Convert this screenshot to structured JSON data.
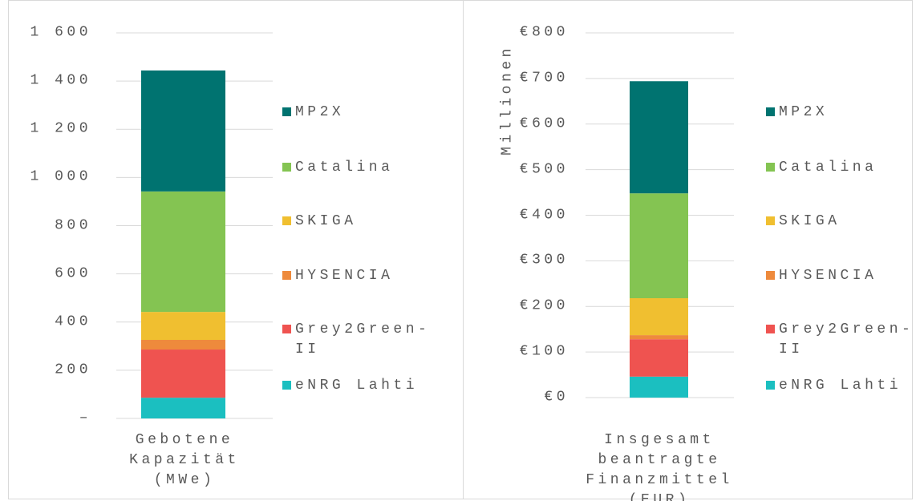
{
  "chart_data": [
    {
      "type": "bar",
      "stacked": true,
      "categories": [
        "Gebotene Kapazität (MWe)"
      ],
      "ylim": [
        0,
        1600
      ],
      "yticks": [
        {
          "value": 0,
          "label": "–"
        },
        200,
        400,
        600,
        800,
        {
          "value": 1000,
          "label": "1 000"
        },
        {
          "value": 1200,
          "label": "1 200"
        },
        {
          "value": 1400,
          "label": "1 400"
        },
        {
          "value": 1600,
          "label": "1 600"
        }
      ],
      "grid": true,
      "series": [
        {
          "name": "eNRG Lahti",
          "color": "#1bbfc0",
          "values": [
            86
          ]
        },
        {
          "name": "Grey2Green-II",
          "color": "#ef5350",
          "values": [
            200
          ]
        },
        {
          "name": "HYSENCIA",
          "color": "#ee8a3c",
          "values": [
            40
          ]
        },
        {
          "name": "SKIGA",
          "color": "#f0bf30",
          "values": [
            116
          ]
        },
        {
          "name": "Catalina",
          "color": "#84c452",
          "values": [
            500
          ]
        },
        {
          "name": "MP2X",
          "color": "#007370",
          "values": [
            502
          ]
        }
      ]
    },
    {
      "type": "bar",
      "stacked": true,
      "y_label": "Millionen",
      "categories": [
        "Insgesamt beantragte Finanzmittel (EUR)"
      ],
      "ylim": [
        0,
        800
      ],
      "yticks": [
        {
          "value": 0,
          "label": "€0"
        },
        {
          "value": 100,
          "label": "€100"
        },
        {
          "value": 200,
          "label": "€200"
        },
        {
          "value": 300,
          "label": "€300"
        },
        {
          "value": 400,
          "label": "€400"
        },
        {
          "value": 500,
          "label": "€500"
        },
        {
          "value": 600,
          "label": "€600"
        },
        {
          "value": 700,
          "label": "€700"
        },
        {
          "value": 800,
          "label": "€800"
        }
      ],
      "grid": true,
      "series": [
        {
          "name": "eNRG Lahti",
          "color": "#1bbfc0",
          "values": [
            46
          ]
        },
        {
          "name": "Grey2Green-II",
          "color": "#ef5350",
          "values": [
            82
          ]
        },
        {
          "name": "HYSENCIA",
          "color": "#ee8a3c",
          "values": [
            9
          ]
        },
        {
          "name": "SKIGA",
          "color": "#f0bf30",
          "values": [
            81
          ]
        },
        {
          "name": "Catalina",
          "color": "#84c452",
          "values": [
            230
          ]
        },
        {
          "name": "MP2X",
          "color": "#007370",
          "values": [
            246
          ]
        }
      ]
    }
  ]
}
